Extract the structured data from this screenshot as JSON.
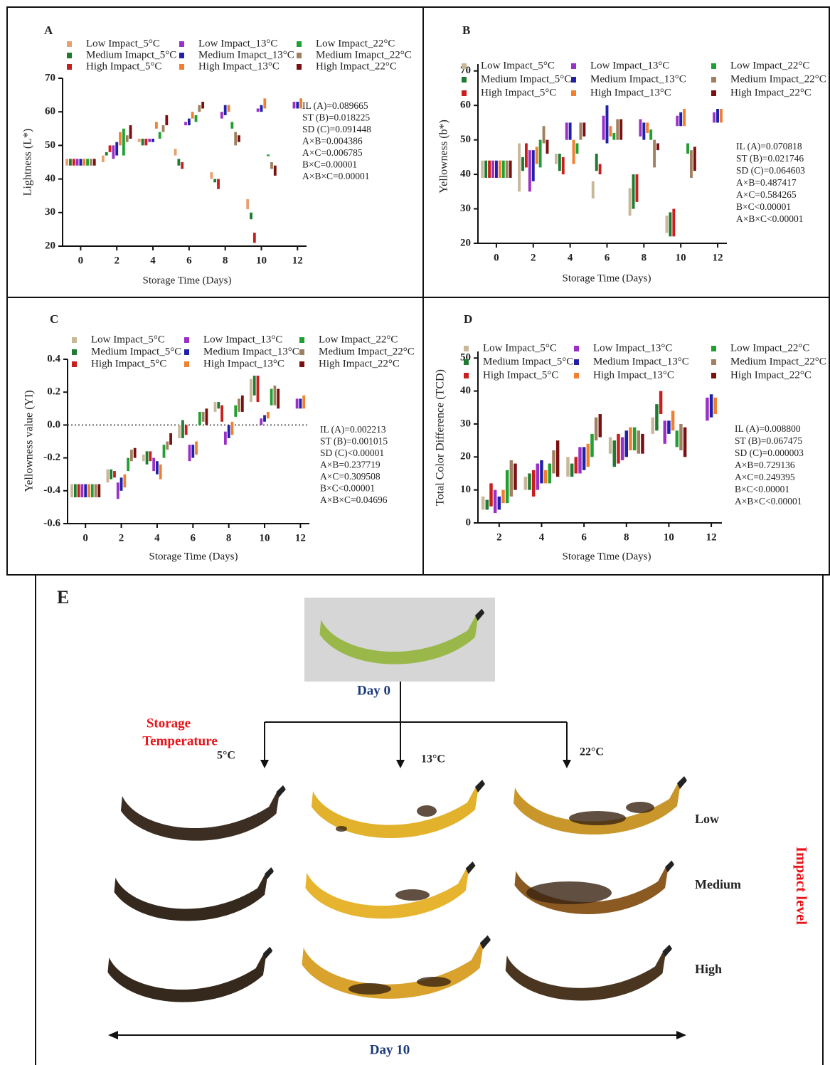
{
  "chart_data": [
    {
      "type": "range_bar",
      "label": "A",
      "ylabel": "Lightness (L*)",
      "xlabel": "Storage Time (Days)",
      "x": [
        0,
        2,
        4,
        6,
        8,
        10,
        12
      ],
      "xlim": [
        -1,
        12.5
      ],
      "xticks": [
        0,
        2,
        4,
        6,
        8,
        10,
        12
      ],
      "ylim": [
        20,
        70
      ],
      "yticks": [
        20,
        30,
        40,
        50,
        60,
        70
      ],
      "stats": [
        "IL (A)=0.089665",
        "ST (B)=0.018225",
        "SD (C)=0.091448",
        "A×B=0.004386",
        "A×C=0.006785",
        "B×C=0.00001",
        "A×B×C=0.00001"
      ],
      "series": [
        {
          "name": "Low Impact_5°C",
          "color": "#e8a070",
          "low": [
            44,
            45,
            51,
            47,
            40,
            31,
            null
          ],
          "high": [
            46,
            47,
            52,
            49,
            42,
            34,
            null
          ]
        },
        {
          "name": "Medium Imapct_5°C",
          "color": "#1e7b30",
          "low": [
            44,
            47,
            50,
            44,
            39,
            28,
            null
          ],
          "high": [
            46,
            48,
            52,
            46,
            40,
            30,
            null
          ]
        },
        {
          "name": "High Impact_5°C",
          "color": "#c81e1e",
          "low": [
            44,
            48,
            50,
            43,
            37,
            21,
            null
          ],
          "high": [
            46,
            50,
            52,
            45,
            40,
            24,
            null
          ]
        },
        {
          "name": "Low Impact_13°C",
          "color": "#9b30c8",
          "low": [
            44,
            46,
            51,
            56,
            58,
            60,
            61
          ],
          "high": [
            46,
            50,
            52,
            57,
            60,
            61,
            63
          ]
        },
        {
          "name": "Medium Imapct_13°C",
          "color": "#2020a8",
          "low": [
            44,
            47,
            51,
            56,
            59,
            60,
            61
          ],
          "high": [
            46,
            51,
            52,
            58,
            62,
            62,
            63
          ]
        },
        {
          "name": "High Impact_13°C",
          "color": "#f08030",
          "low": [
            44,
            50,
            55,
            58,
            60,
            61,
            61
          ],
          "high": [
            46,
            54,
            57,
            60,
            62,
            64,
            64
          ]
        },
        {
          "name": "Low Impact_22°C",
          "color": "#20a030",
          "low": [
            44,
            47,
            52,
            57,
            55,
            46.8,
            null
          ],
          "high": [
            46,
            55,
            54,
            59,
            57,
            47.3,
            null
          ]
        },
        {
          "name": "Medium Imapct_22°C",
          "color": "#a08060",
          "low": [
            44,
            51,
            54,
            60,
            50,
            43,
            null
          ],
          "high": [
            46,
            53,
            56,
            62,
            54,
            45,
            null
          ]
        },
        {
          "name": "High Impact_22°C",
          "color": "#7a1010",
          "low": [
            44,
            52,
            56,
            61,
            51,
            41,
            null
          ],
          "high": [
            46,
            56,
            59,
            63,
            53,
            44,
            null
          ]
        }
      ]
    },
    {
      "type": "range_bar",
      "label": "B",
      "ylabel": "Yellowness (b*)",
      "xlabel": "Storage Time (Days)",
      "x": [
        0,
        2,
        4,
        6,
        8,
        10,
        12
      ],
      "xlim": [
        -1,
        12.5
      ],
      "xticks": [
        0,
        2,
        4,
        6,
        8,
        10,
        12
      ],
      "ylim": [
        20,
        72
      ],
      "yticks": [
        20,
        30,
        40,
        50,
        60,
        70
      ],
      "stats": [
        "IL (A)=0.070818",
        "ST (B)=0.021746",
        "SD (C)=0.064603",
        "A×B=0.487417",
        "A×C=0.584265",
        "B×C<0.00001",
        "A×B×C<0.00001"
      ],
      "series": [
        {
          "name": "Low Impact_5°C",
          "color": "#c8b89a",
          "low": [
            39,
            35,
            43,
            33,
            28,
            23,
            null
          ],
          "high": [
            44,
            49,
            46,
            38,
            36,
            28,
            null
          ]
        },
        {
          "name": "Medium Impact_5°C",
          "color": "#1e7b30",
          "low": [
            39,
            41,
            41,
            41,
            30,
            22,
            null
          ],
          "high": [
            44,
            45,
            46,
            46,
            40,
            29,
            null
          ]
        },
        {
          "name": "High Impact_5°C",
          "color": "#c81e1e",
          "low": [
            39,
            42,
            40,
            40,
            32,
            22,
            null
          ],
          "high": [
            44,
            49,
            45,
            43,
            40,
            30,
            null
          ]
        },
        {
          "name": "Low Impact_13°C",
          "color": "#9b30c8",
          "low": [
            39,
            35,
            50,
            50,
            51,
            54,
            55
          ],
          "high": [
            44,
            47,
            55,
            57,
            56,
            57,
            58
          ]
        },
        {
          "name": "Medium Impact_13°C",
          "color": "#2020a8",
          "low": [
            39,
            38,
            50,
            49,
            50,
            54,
            55
          ],
          "high": [
            44,
            47,
            55,
            60,
            55,
            58,
            59
          ]
        },
        {
          "name": "High Impact_13°C",
          "color": "#f08030",
          "low": [
            39,
            43,
            43,
            51,
            52,
            54,
            55
          ],
          "high": [
            44,
            48,
            50,
            54,
            55,
            59,
            59
          ]
        },
        {
          "name": "Low Impact_22°C",
          "color": "#20a030",
          "low": [
            39,
            42,
            46,
            50,
            50,
            46,
            null
          ],
          "high": [
            44,
            50,
            49,
            52,
            53,
            49,
            null
          ]
        },
        {
          "name": "Medium Impact_22°C",
          "color": "#a08060",
          "low": [
            39,
            49,
            50,
            50,
            42,
            39,
            null
          ],
          "high": [
            44,
            54,
            55,
            56,
            50,
            47,
            null
          ]
        },
        {
          "name": "High Impact_22°C",
          "color": "#7a1010",
          "low": [
            39,
            46,
            51,
            50,
            47,
            41,
            null
          ],
          "high": [
            44,
            50,
            55,
            56,
            49,
            48,
            null
          ]
        }
      ]
    },
    {
      "type": "range_bar",
      "label": "C",
      "ylabel": "Yellowness value (YI)",
      "xlabel": "Storage Time (Days)",
      "zero_line": true,
      "x": [
        0,
        2,
        4,
        6,
        8,
        10,
        12
      ],
      "xlim": [
        -1,
        12.5
      ],
      "xticks": [
        0,
        2,
        4,
        6,
        8,
        10,
        12
      ],
      "ylim": [
        -0.6,
        0.4
      ],
      "yticks": [
        -0.6,
        -0.4,
        -0.2,
        {
          "value": 0,
          "label": "0.0"
        },
        0.2,
        0.4
      ],
      "stats": [
        "IL (A)=0.002213",
        "ST (B)=0.001015",
        "SD (C)<0.00001",
        "A×B=0.237719",
        "A×C=0.309508",
        "B×C<0.00001",
        "A×B×C=0.04696"
      ],
      "series": [
        {
          "name": "Low Impact_5°C",
          "color": "#c8b89a",
          "low": [
            -0.44,
            -0.35,
            -0.22,
            -0.08,
            0.08,
            0.14,
            null
          ],
          "high": [
            -0.36,
            -0.27,
            -0.18,
            0,
            0.14,
            0.28,
            null
          ]
        },
        {
          "name": "Medium Impact_5°C",
          "color": "#1e7b30",
          "low": [
            -0.44,
            -0.33,
            -0.24,
            -0.08,
            0.1,
            0.18,
            null
          ],
          "high": [
            -0.36,
            -0.27,
            -0.16,
            0.03,
            0.14,
            0.3,
            null
          ]
        },
        {
          "name": "High Impact_5°C",
          "color": "#c81e1e",
          "low": [
            -0.44,
            -0.32,
            -0.22,
            -0.06,
            0.02,
            0.14,
            null
          ],
          "high": [
            -0.36,
            -0.28,
            -0.16,
            0,
            0.12,
            0.3,
            null
          ]
        },
        {
          "name": "Low Impact_13°C",
          "color": "#9b30c8",
          "low": [
            -0.44,
            -0.45,
            -0.28,
            -0.22,
            -0.12,
            0,
            0.1
          ],
          "high": [
            -0.36,
            -0.35,
            -0.2,
            -0.12,
            -0.04,
            0.04,
            0.16
          ]
        },
        {
          "name": "Medium Impact_13°C",
          "color": "#2020a8",
          "low": [
            -0.44,
            -0.4,
            -0.3,
            -0.2,
            -0.08,
            0.02,
            0.1
          ],
          "high": [
            -0.36,
            -0.32,
            -0.22,
            -0.12,
            0,
            0.06,
            0.16
          ]
        },
        {
          "name": "High Impact_13°C",
          "color": "#f08030",
          "low": [
            -0.44,
            -0.38,
            -0.33,
            -0.18,
            -0.06,
            0.04,
            0.1
          ],
          "high": [
            -0.36,
            -0.3,
            -0.24,
            -0.1,
            0.02,
            0.08,
            0.18
          ]
        },
        {
          "name": "Low Impact_22°C",
          "color": "#20a030",
          "low": [
            -0.44,
            -0.28,
            -0.2,
            0,
            0.05,
            0.12,
            null
          ],
          "high": [
            -0.36,
            -0.2,
            -0.12,
            0.08,
            0.12,
            0.22,
            null
          ]
        },
        {
          "name": "Medium Impact_22°C",
          "color": "#a08060",
          "low": [
            -0.44,
            -0.22,
            -0.15,
            0.02,
            0.08,
            0.12,
            null
          ],
          "high": [
            -0.36,
            -0.15,
            -0.1,
            0.08,
            0.16,
            0.24,
            null
          ]
        },
        {
          "name": "High Impact_22°C",
          "color": "#7a1010",
          "low": [
            -0.44,
            -0.2,
            -0.12,
            0,
            0.08,
            0.1,
            null
          ],
          "high": [
            -0.36,
            -0.14,
            -0.05,
            0.1,
            0.18,
            0.22,
            null
          ]
        }
      ]
    },
    {
      "type": "range_bar",
      "label": "D",
      "ylabel": "Total Color Difference (TCD)",
      "xlabel": "Storage Time (Days)",
      "x": [
        2,
        4,
        6,
        8,
        10,
        12
      ],
      "xlim": [
        1,
        12.5
      ],
      "xticks": [
        2,
        4,
        6,
        8,
        10,
        12
      ],
      "ylim": [
        0,
        52
      ],
      "yticks": [
        0,
        10,
        20,
        30,
        40,
        50
      ],
      "stats": [
        "IL (A)=0.008800",
        "ST (B)=0.067475",
        "SD (C)=0.000003",
        "A×B=0.729136",
        "A×C=0.249395",
        "B×C<0.00001",
        "A×B×C<0.00001"
      ],
      "series": [
        {
          "name": "Low Impact_5°C",
          "color": "#c8b89a",
          "low": [
            4,
            10,
            14,
            21,
            27,
            null
          ],
          "high": [
            8,
            14,
            20,
            26,
            32,
            null
          ]
        },
        {
          "name": "Medium Impact_5°C",
          "color": "#1e7b30",
          "low": [
            4,
            10,
            14,
            17,
            28,
            null
          ],
          "high": [
            7,
            15,
            18,
            25,
            36,
            null
          ]
        },
        {
          "name": "High Impact_5°C",
          "color": "#c81e1e",
          "low": [
            5,
            8,
            15,
            18,
            33,
            null
          ],
          "high": [
            12,
            16,
            20,
            27,
            40,
            null
          ]
        },
        {
          "name": "Low Impact_13°C",
          "color": "#9b30c8",
          "low": [
            3,
            10,
            15,
            19,
            24,
            31
          ],
          "high": [
            10,
            18,
            23,
            26,
            31,
            38
          ]
        },
        {
          "name": "Medium Impact_13°C",
          "color": "#2020a8",
          "low": [
            4,
            12,
            16,
            20,
            27,
            32
          ],
          "high": [
            8,
            19,
            23,
            28,
            31,
            39
          ]
        },
        {
          "name": "High Impact_13°C",
          "color": "#f08030",
          "low": [
            6,
            12,
            17,
            22,
            28,
            33
          ],
          "high": [
            10,
            16,
            24,
            29,
            34,
            38
          ]
        },
        {
          "name": "Low Impact_22°C",
          "color": "#20a030",
          "low": [
            6,
            12,
            20,
            22,
            23,
            null
          ],
          "high": [
            16,
            18,
            27,
            29,
            28,
            null
          ]
        },
        {
          "name": "Medium Impact_22°C",
          "color": "#a08060",
          "low": [
            8,
            15,
            25,
            21,
            22,
            null
          ],
          "high": [
            19,
            22,
            32,
            28,
            30,
            null
          ]
        },
        {
          "name": "High Impact_22°C",
          "color": "#7a1010",
          "low": [
            10,
            14,
            26,
            21,
            20,
            null
          ],
          "high": [
            18,
            25,
            33,
            27,
            29,
            null
          ]
        }
      ]
    }
  ],
  "panel_e": {
    "label": "E",
    "day0": "Day 0",
    "storage_temperature": [
      "Storage",
      "Temperature"
    ],
    "temperatures": [
      "5°C",
      "13°C",
      "22°C"
    ],
    "impact_levels": [
      "Low",
      "Medium",
      "High"
    ],
    "impact_axis": "Impact level",
    "day10": "Day 10"
  }
}
